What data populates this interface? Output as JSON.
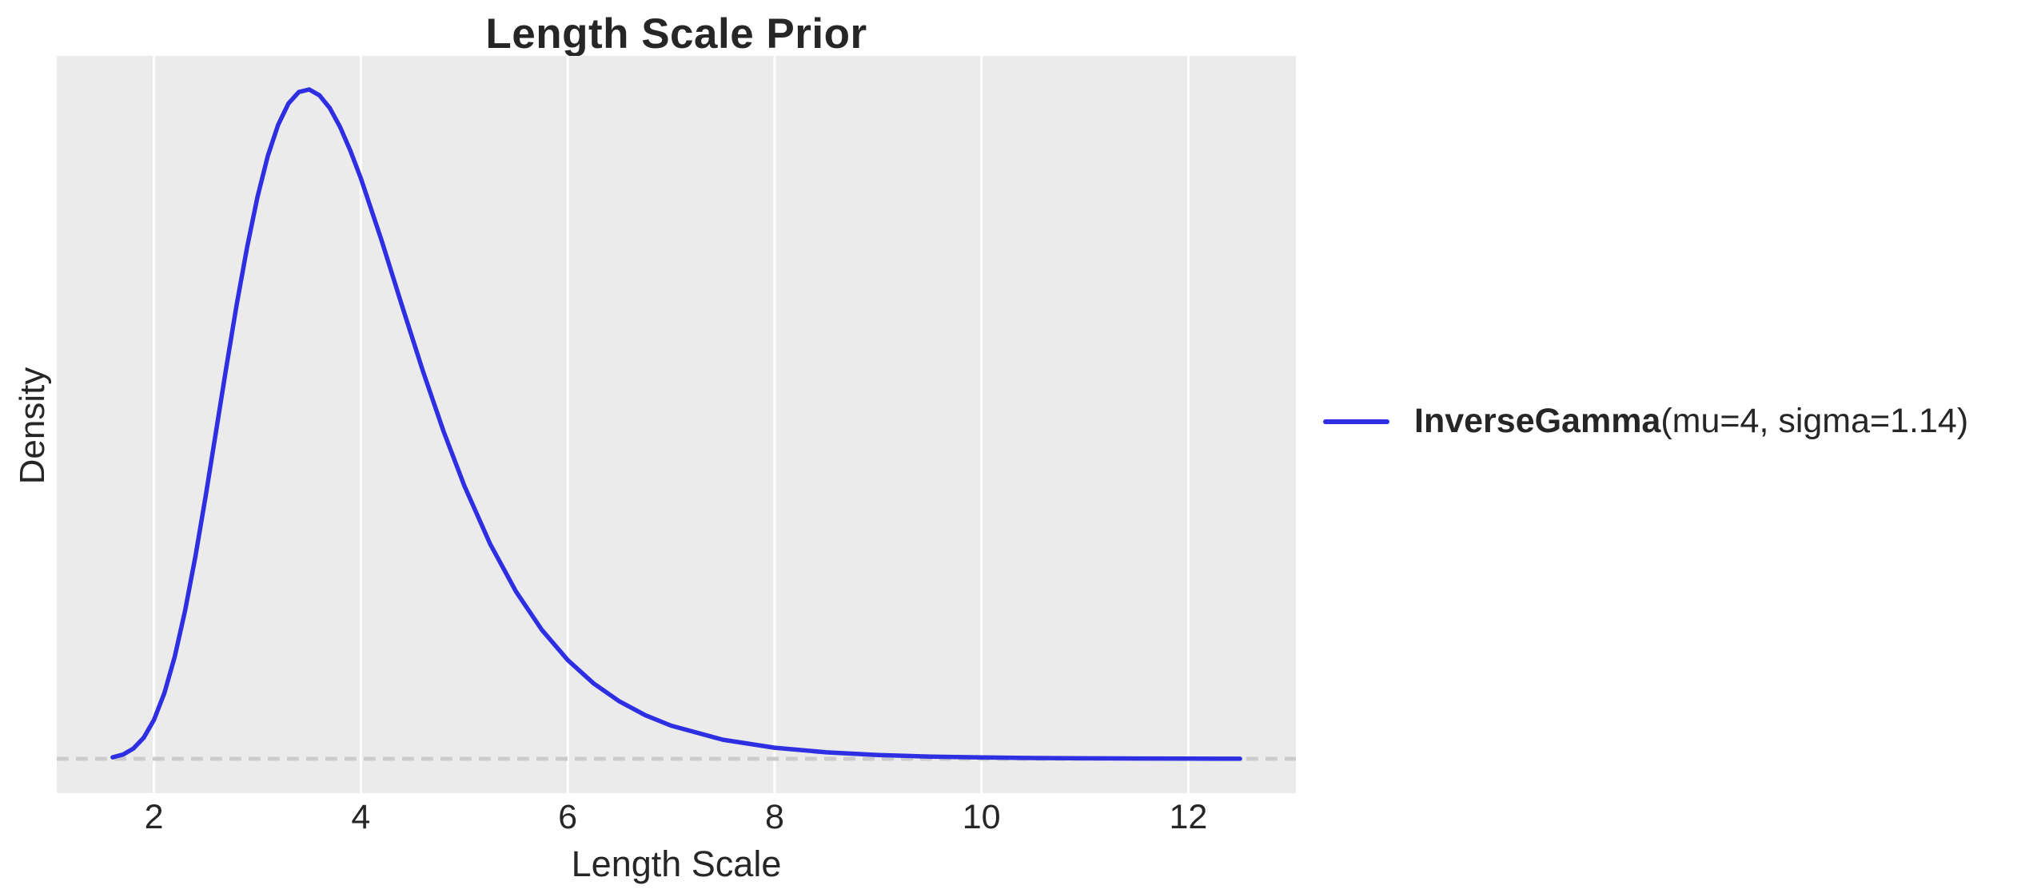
{
  "figure": {
    "title": "Length Scale Prior",
    "xlabel": "Length Scale",
    "ylabel": "Density"
  },
  "legend": {
    "dist_name": "InverseGamma",
    "params": "(mu=4, sigma=1.14)",
    "line_color": "#2e2ee2"
  },
  "colors": {
    "plot_bg": "#ebebeb",
    "grid": "#ffffff",
    "curve": "#2e2ee2",
    "zero_line": "#cbcbcb",
    "text": "#262626"
  },
  "chart_data": {
    "type": "line",
    "title": "Length Scale Prior",
    "xlabel": "Length Scale",
    "ylabel": "Density",
    "xlim": [
      1.06,
      13.04
    ],
    "ylim": [
      -0.0215,
      0.4403
    ],
    "x_ticks": [
      2,
      4,
      6,
      8,
      10,
      12
    ],
    "y_ticks": [],
    "grid": "vertical-white-gridlines-only",
    "legend_position": "outside-center-right",
    "zero_reference_line": {
      "y": 0,
      "style": "dashed",
      "color": "#cbcbcb"
    },
    "series": [
      {
        "name": "InverseGamma(mu=4, sigma=1.14)",
        "distribution": "InverseGamma",
        "mu": 4,
        "sigma": 1.14,
        "peak": {
          "x": 3.5,
          "y": 0.419
        },
        "x": [
          1.6,
          1.7,
          1.8,
          1.9,
          2.0,
          2.1,
          2.2,
          2.3,
          2.4,
          2.5,
          2.6,
          2.7,
          2.8,
          2.9,
          3.0,
          3.1,
          3.2,
          3.3,
          3.4,
          3.5,
          3.6,
          3.7,
          3.8,
          3.9,
          4.0,
          4.2,
          4.4,
          4.6,
          4.8,
          5.0,
          5.25,
          5.5,
          5.75,
          6.0,
          6.25,
          6.5,
          6.75,
          7.0,
          7.5,
          8.0,
          8.5,
          9.0,
          9.5,
          10.0,
          10.5,
          11.0,
          11.5,
          12.0,
          12.5
        ],
        "y": [
          0.00096,
          0.00268,
          0.00637,
          0.01319,
          0.02443,
          0.04114,
          0.06385,
          0.09258,
          0.12672,
          0.16471,
          0.20499,
          0.2456,
          0.28464,
          0.32049,
          0.35177,
          0.3775,
          0.39712,
          0.41049,
          0.41769,
          0.41928,
          0.41565,
          0.40758,
          0.39565,
          0.38078,
          0.3636,
          0.32471,
          0.28345,
          0.24288,
          0.20505,
          0.1711,
          0.13462,
          0.10473,
          0.08077,
          0.06191,
          0.04725,
          0.03597,
          0.02734,
          0.02077,
          0.01199,
          0.00696,
          0.00407,
          0.0024,
          0.00143,
          0.00086,
          0.00053,
          0.00033,
          0.0002,
          0.00013,
          8e-05
        ]
      }
    ]
  }
}
